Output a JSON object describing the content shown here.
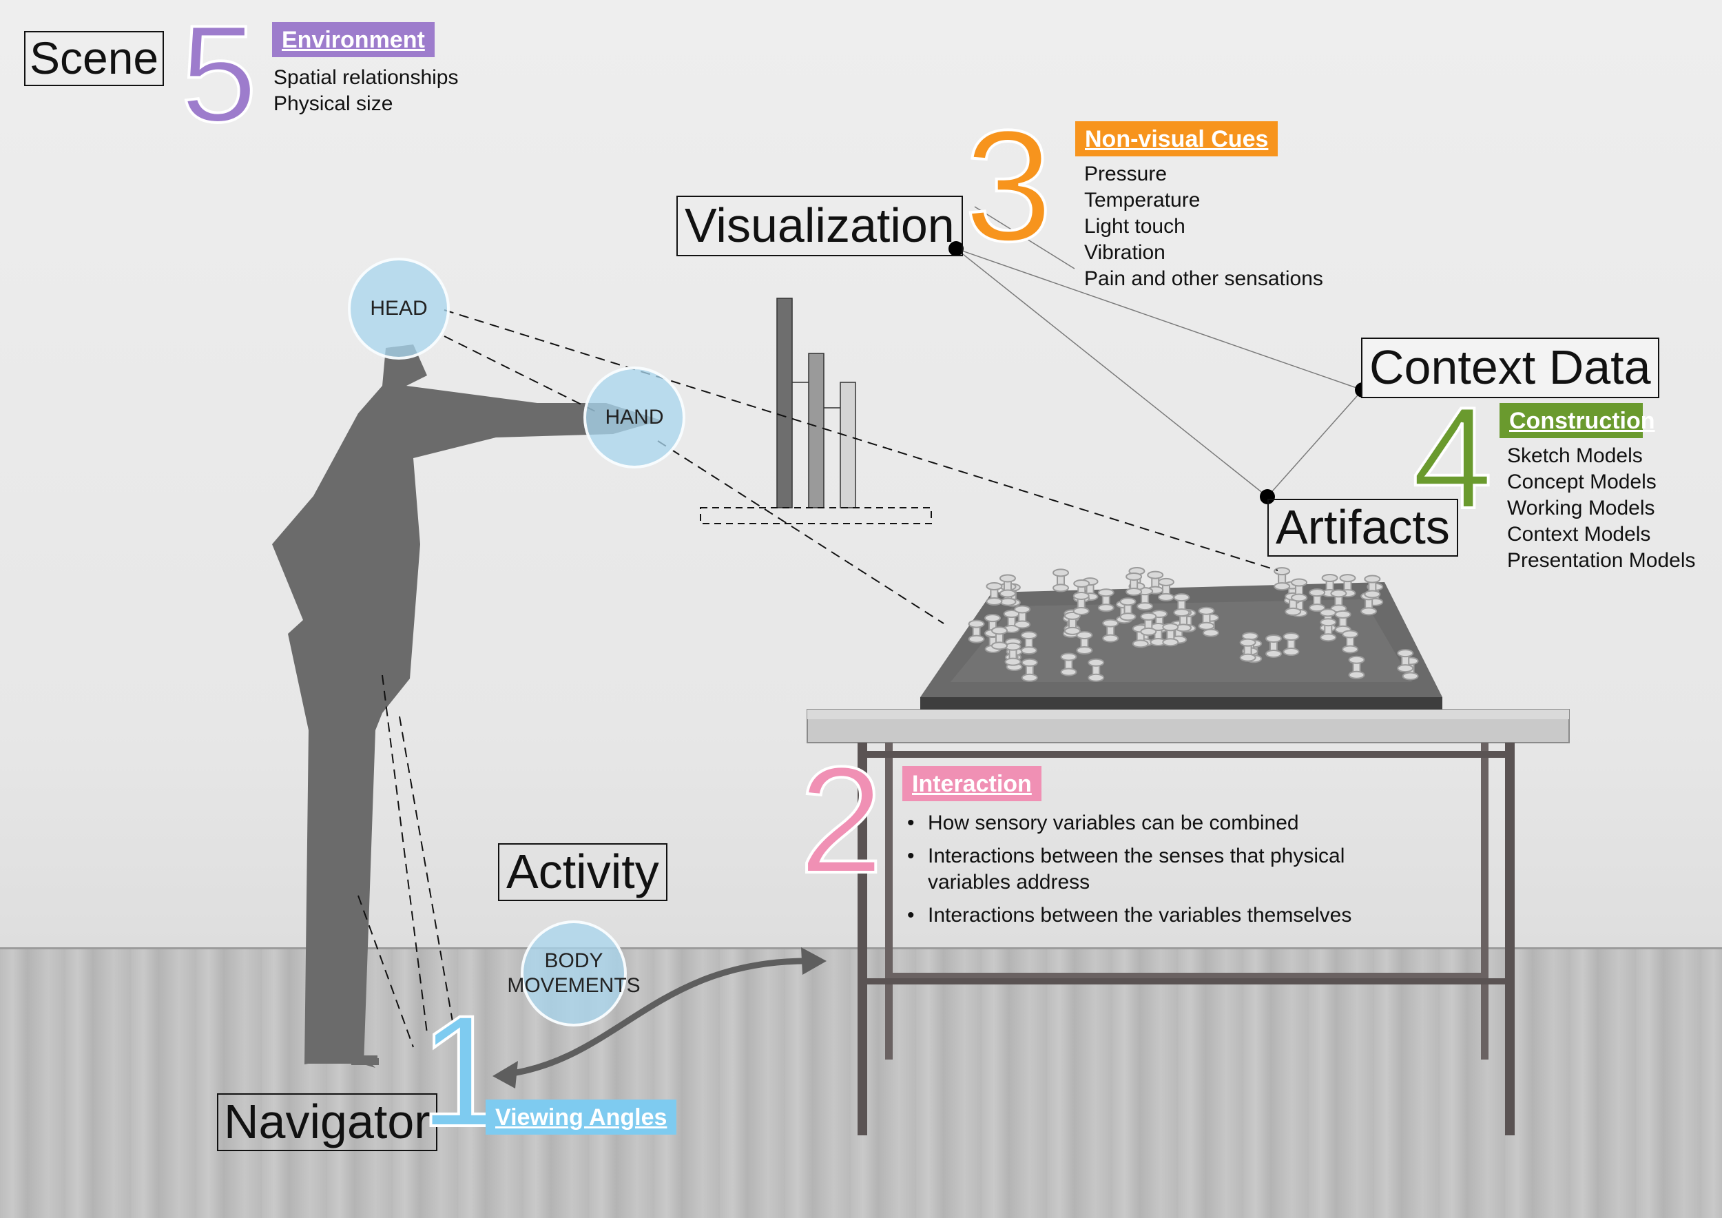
{
  "scene": {
    "label": "Scene"
  },
  "navigator": {
    "label": "Navigator"
  },
  "activity": {
    "label": "Activity"
  },
  "visualization": {
    "label": "Visualization"
  },
  "context_data": {
    "label": "Context Data"
  },
  "artifacts": {
    "label": "Artifacts"
  },
  "body_parts": {
    "head": "HEAD",
    "hand": "HAND",
    "body_movements": "BODY\nMOVEMENTS"
  },
  "sections": [
    {
      "number": "1",
      "title": "Viewing Angles",
      "color": "#7ecbf0",
      "items": []
    },
    {
      "number": "2",
      "title": "Interaction",
      "color": "#f090b4",
      "items": [
        "How sensory variables can be combined",
        "Interactions between the senses that physical variables address",
        "Interactions between the variables themselves"
      ]
    },
    {
      "number": "3",
      "title": "Non-visual Cues",
      "color": "#f7941d",
      "items": [
        "Pressure",
        "Temperature",
        "Light touch",
        "Vibration",
        "Pain and other sensations"
      ]
    },
    {
      "number": "4",
      "title": "Construction",
      "color": "#6a9a2e",
      "items": [
        "Sketch Models",
        "Concept Models",
        "Working Models",
        "Context Models",
        "Presentation Models"
      ]
    },
    {
      "number": "5",
      "title": "Environment",
      "color": "#9d7ccc",
      "items": [
        "Spatial relationships",
        "Physical size"
      ]
    }
  ],
  "icons": [
    "person-silhouette-icon",
    "bar-chart-icon",
    "table-icon",
    "city-model-icon",
    "double-arrow-icon"
  ]
}
